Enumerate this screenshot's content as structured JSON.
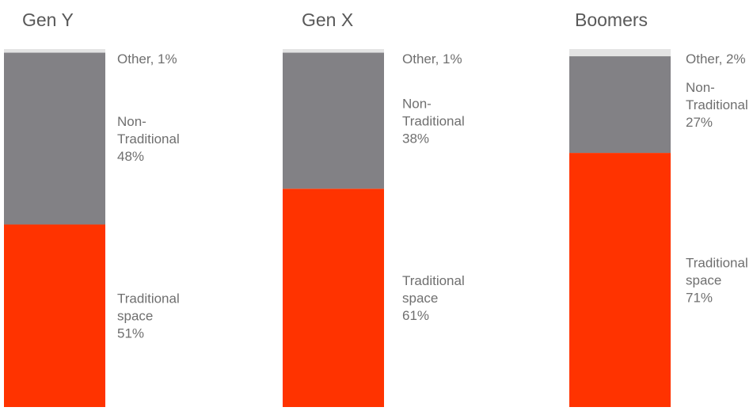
{
  "chart_data": {
    "type": "bar",
    "stacked": true,
    "normalized_percent": true,
    "categories": [
      "Gen Y",
      "Gen X",
      "Boomers"
    ],
    "series": [
      {
        "key": "traditional",
        "values": [
          51,
          61,
          71
        ],
        "label_lines": [
          "Traditional",
          "space"
        ]
      },
      {
        "key": "non_traditional",
        "values": [
          48,
          38,
          27
        ],
        "label_lines": [
          "Non-",
          "Traditional"
        ]
      },
      {
        "key": "other",
        "values": [
          1,
          1,
          2
        ],
        "label_lines": [
          "Other, "
        ]
      }
    ],
    "colors": {
      "traditional": "#FF3300",
      "non_traditional": "#828185",
      "other": "#E3E3E3",
      "label_text": "#6F6F6F",
      "title_text": "#595959"
    },
    "ylim": [
      0,
      100
    ],
    "grid": false,
    "axes_visible": false,
    "legend": "none (direct labels beside each segment)"
  }
}
